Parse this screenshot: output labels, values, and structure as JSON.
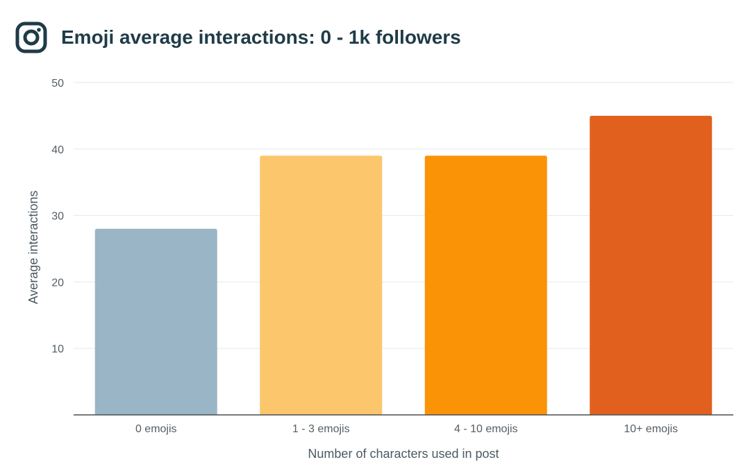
{
  "header": {
    "title": "Emoji average interactions: 0 - 1k followers",
    "logo_icon": "instagram-icon",
    "logo_color": "#1f3b48"
  },
  "chart_data": {
    "type": "bar",
    "title": "Emoji average interactions: 0 - 1k followers",
    "categories": [
      "0 emojis",
      "1 - 3 emojis",
      "4 - 10 emojis",
      "10+ emojis"
    ],
    "values": [
      28,
      39,
      39,
      45
    ],
    "colors": [
      "#9ab5c5",
      "#fcc66d",
      "#fb9306",
      "#e2601e"
    ],
    "xlabel": "Number of characters used in post",
    "ylabel": "Average interactions",
    "ylim": [
      0,
      50
    ],
    "yticks": [
      10,
      20,
      30,
      40,
      50
    ],
    "grid": true,
    "legend": "none"
  }
}
